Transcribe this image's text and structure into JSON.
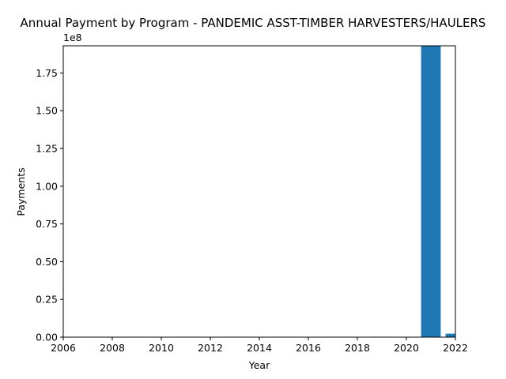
{
  "chart_data": {
    "type": "bar",
    "title": "Annual Payment by Program - PANDEMIC ASST-TIMBER HARVESTERS/HAULERS",
    "xlabel": "Year",
    "ylabel": "Payments",
    "y_offset_label": "1e8",
    "xlim": [
      2006,
      2022
    ],
    "ylim": [
      0,
      193000000
    ],
    "x_ticks": [
      "2006",
      "2008",
      "2010",
      "2012",
      "2014",
      "2016",
      "2018",
      "2020",
      "2022"
    ],
    "y_ticks": [
      "0.00",
      "0.25",
      "0.50",
      "0.75",
      "1.00",
      "1.25",
      "1.50",
      "1.75"
    ],
    "categories": [
      2021,
      2022
    ],
    "values": [
      193000000,
      2300000
    ],
    "bar_color": "#1f77b4",
    "grid": false
  }
}
